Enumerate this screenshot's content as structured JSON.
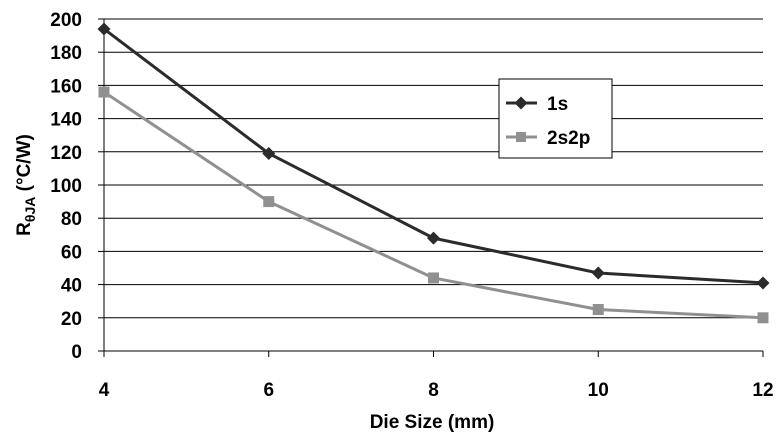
{
  "chart_data": {
    "type": "line",
    "title": "",
    "xlabel": "Die Size (mm)",
    "ylabel": {
      "main": "R",
      "subscript": "θJA",
      "unit": " (°C/W)"
    },
    "x": [
      4,
      6,
      8,
      10,
      12
    ],
    "x_ticks": [
      "4",
      "6",
      "8",
      "10",
      "12"
    ],
    "xlim": [
      4,
      12
    ],
    "ylim": [
      0,
      200
    ],
    "y_ticks": [
      "0",
      "20",
      "40",
      "60",
      "80",
      "100",
      "120",
      "140",
      "160",
      "180",
      "200"
    ],
    "grid": "horizontal",
    "legend_position": "right",
    "series": [
      {
        "name": "1s",
        "values": [
          194,
          119,
          68,
          47,
          41
        ],
        "color": "#2b2b2b",
        "marker": "diamond"
      },
      {
        "name": "2s2p",
        "values": [
          156,
          90,
          44,
          25,
          20
        ],
        "color": "#909090",
        "marker": "square"
      }
    ]
  }
}
